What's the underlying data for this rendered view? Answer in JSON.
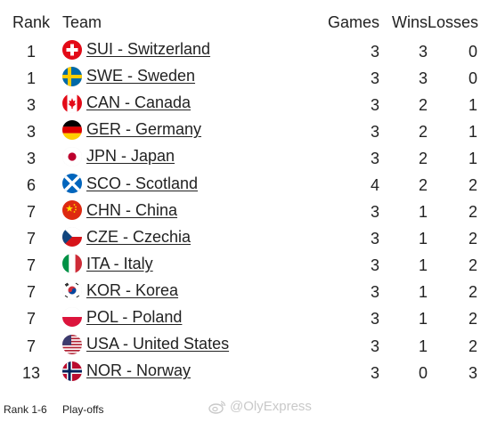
{
  "table": {
    "headers": {
      "rank": "Rank",
      "team": "Team",
      "games": "Games",
      "wins": "Wins",
      "losses": "Losses"
    },
    "rows": [
      {
        "rank": "1",
        "team": "SUI - Switzerland",
        "flag": "switzerland-flag-icon",
        "games": "3",
        "wins": "3",
        "losses": "0"
      },
      {
        "rank": "1",
        "team": "SWE - Sweden",
        "flag": "sweden-flag-icon",
        "games": "3",
        "wins": "3",
        "losses": "0"
      },
      {
        "rank": "3",
        "team": "CAN - Canada",
        "flag": "canada-flag-icon",
        "games": "3",
        "wins": "2",
        "losses": "1"
      },
      {
        "rank": "3",
        "team": "GER - Germany",
        "flag": "germany-flag-icon",
        "games": "3",
        "wins": "2",
        "losses": "1"
      },
      {
        "rank": "3",
        "team": "JPN - Japan",
        "flag": "japan-flag-icon",
        "games": "3",
        "wins": "2",
        "losses": "1"
      },
      {
        "rank": "6",
        "team": "SCO - Scotland",
        "flag": "scotland-flag-icon",
        "games": "4",
        "wins": "2",
        "losses": "2"
      },
      {
        "rank": "7",
        "team": "CHN - China",
        "flag": "china-flag-icon",
        "games": "3",
        "wins": "1",
        "losses": "2"
      },
      {
        "rank": "7",
        "team": "CZE - Czechia",
        "flag": "czechia-flag-icon",
        "games": "3",
        "wins": "1",
        "losses": "2"
      },
      {
        "rank": "7",
        "team": "ITA - Italy",
        "flag": "italy-flag-icon",
        "games": "3",
        "wins": "1",
        "losses": "2"
      },
      {
        "rank": "7",
        "team": "KOR - Korea",
        "flag": "korea-flag-icon",
        "games": "3",
        "wins": "1",
        "losses": "2"
      },
      {
        "rank": "7",
        "team": "POL - Poland",
        "flag": "poland-flag-icon",
        "games": "3",
        "wins": "1",
        "losses": "2"
      },
      {
        "rank": "7",
        "team": "USA - United States",
        "flag": "usa-flag-icon",
        "games": "3",
        "wins": "1",
        "losses": "2"
      },
      {
        "rank": "13",
        "team": "NOR - Norway",
        "flag": "norway-flag-icon",
        "games": "3",
        "wins": "0",
        "losses": "3"
      }
    ]
  },
  "legend": {
    "rank_range": "Rank 1-6",
    "label": "Play-offs"
  },
  "watermark": {
    "text": "@OlyExpress",
    "icon": "weibo-icon"
  },
  "colors": {
    "text": "#222222",
    "watermark": "#c9c9c9",
    "background": "#ffffff"
  }
}
